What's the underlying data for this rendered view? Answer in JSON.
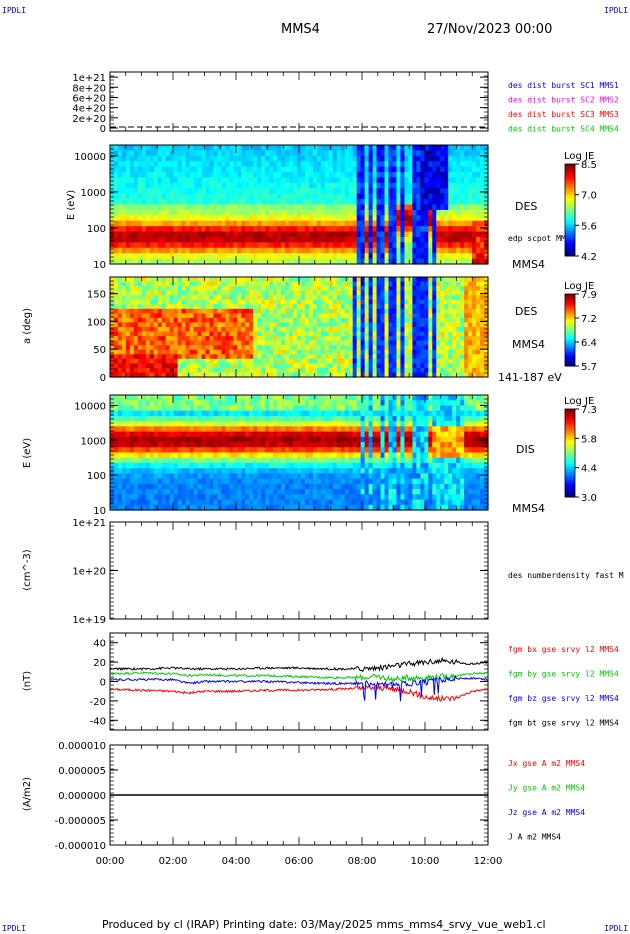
{
  "header": {
    "left_corner": "IPDLI",
    "right_corner": "IPDLI",
    "spacecraft": "MMS4",
    "date": "27/Nov/2023 00:00",
    "bottom_left_corner": "IPDLI",
    "bottom_right_corner": "IPDLI"
  },
  "footer": {
    "text": "Produced by cl (IRAP)   Printing date: 03/May/2025   mms_mms4_srvy_vue_web1.cl"
  },
  "colors": {
    "mms1": "#0000ff",
    "mms2": "#ff00ff",
    "mms3": "#ff0000",
    "mms4": "#00cc00",
    "bx": "#ff0000",
    "by": "#00cc00",
    "bz": "#0000ff",
    "bt": "#000000"
  },
  "chart_data": [
    {
      "type": "line",
      "panel": "des-dist-burst",
      "ylim": [
        0,
        1.1e+21
      ],
      "yticks": [
        "1e+21",
        "8e+20",
        "6e+20",
        "4e+20",
        "2e+20",
        "0"
      ],
      "legend": [
        "des dist burst SC1 MMS1",
        "des dist burst SC2 MMS2",
        "des dist burst SC3 MMS3",
        "des dist burst SC4 MMS4"
      ]
    },
    {
      "type": "heatmap",
      "panel": "des-energy",
      "ylabel": "E (eV)",
      "yscale": "log",
      "ylim": [
        10,
        20000
      ],
      "yticks": [
        "10000",
        "1000",
        "100",
        "10"
      ],
      "label": "DES",
      "sublabel": "edp scpot MMS4",
      "bottom_label": "MMS4",
      "colorbar": {
        "title": "Log JE",
        "ticks": [
          "8.5",
          "7.0",
          "5.6",
          "4.2"
        ],
        "range": [
          4.2,
          8.5
        ]
      }
    },
    {
      "type": "heatmap",
      "panel": "des-pitch",
      "ylabel": "a (deg)",
      "ylim": [
        0,
        180
      ],
      "yticks": [
        "150",
        "100",
        "50",
        "0"
      ],
      "label": "DES",
      "sublabel": "MMS4",
      "bottom_label": "141-187 eV",
      "colorbar": {
        "title": "Log JE",
        "ticks": [
          "7.9",
          "7.2",
          "6.4",
          "5.7"
        ],
        "range": [
          5.7,
          7.9
        ]
      }
    },
    {
      "type": "heatmap",
      "panel": "dis-energy",
      "ylabel": "E (eV)",
      "yscale": "log",
      "ylim": [
        10,
        20000
      ],
      "yticks": [
        "10000",
        "1000",
        "100",
        "10"
      ],
      "label": "DIS",
      "bottom_label": "MMS4",
      "colorbar": {
        "title": "Log JE",
        "ticks": [
          "7.3",
          "5.8",
          "4.4",
          "3.0"
        ],
        "range": [
          3.0,
          7.3
        ]
      }
    },
    {
      "type": "line",
      "panel": "density",
      "ylabel": "(cm^-3)",
      "yscale": "log",
      "ylim": [
        1e+19,
        1e+21
      ],
      "yticks": [
        "1e+21",
        "1e+20",
        "1e+19"
      ],
      "legend": [
        "des numberdensity fast M"
      ]
    },
    {
      "type": "line",
      "panel": "fgm",
      "ylabel": "(nT)",
      "ylim": [
        -50,
        50
      ],
      "yticks": [
        "40",
        "20",
        "0",
        "-20",
        "-40"
      ],
      "legend": [
        "fgm bx gse srvy l2 MMS4",
        "fgm by gse srvy l2 MMS4",
        "fgm bz gse srvy l2 MMS4",
        "fgm bt gse srvy l2 MMS4"
      ],
      "series": [
        {
          "name": "fgm bx gse srvy l2 MMS4",
          "x": [
            0,
            1,
            2,
            2.5,
            3,
            4,
            5,
            6,
            7,
            8,
            8.5,
            9,
            9.5,
            10,
            10.5,
            11,
            11.5,
            12
          ],
          "values": [
            -8,
            -9,
            -10,
            -12,
            -10,
            -10,
            -9,
            -9,
            -8,
            -7,
            -6,
            -8,
            -10,
            -16,
            -18,
            -17,
            -10,
            -8
          ]
        },
        {
          "name": "fgm by gse srvy l2 MMS4",
          "x": [
            0,
            1,
            2,
            2.5,
            3,
            4,
            5,
            6,
            7,
            8,
            8.5,
            9,
            9.5,
            10,
            10.5,
            11,
            11.5,
            12
          ],
          "values": [
            8,
            9,
            8,
            6,
            7,
            6,
            6,
            5,
            4,
            4,
            5,
            2,
            4,
            4,
            5,
            6,
            8,
            9
          ]
        },
        {
          "name": "fgm bz gse srvy l2 MMS4",
          "x": [
            0,
            1,
            2,
            2.5,
            3,
            4,
            5,
            6,
            7,
            8,
            8.5,
            9,
            9.5,
            10,
            10.5,
            11,
            11.5,
            12
          ],
          "values": [
            2,
            2,
            2,
            -2,
            0,
            0,
            0,
            -1,
            -2,
            -2,
            -3,
            -4,
            -2,
            -1,
            2,
            3,
            3,
            2
          ]
        },
        {
          "name": "fgm bt gse srvy l2 MMS4",
          "x": [
            0,
            1,
            2,
            2.5,
            3,
            4,
            5,
            6,
            7,
            8,
            8.5,
            9,
            9.5,
            10,
            10.5,
            11,
            11.5,
            12
          ],
          "values": [
            13,
            13,
            14,
            13,
            13,
            13,
            14,
            14,
            13,
            13,
            14,
            16,
            18,
            20,
            21,
            20,
            18,
            20
          ]
        }
      ]
    },
    {
      "type": "line",
      "panel": "current",
      "ylabel": "(A/m2)",
      "ylim": [
        -1e-05,
        1e-05
      ],
      "yticks": [
        "0.000010",
        "0.000005",
        "0.000000",
        "-0.000005",
        "-0.000010"
      ],
      "legend": [
        "Jx gse A m2 MMS4",
        "Jy gse A m2 MMS4",
        "Jz gse A m2 MMS4",
        "J A m2 MMS4"
      ],
      "series": [
        {
          "name": "J A m2 MMS4",
          "x": [
            0,
            12
          ],
          "values": [
            0,
            0
          ]
        }
      ]
    }
  ],
  "time_axis": {
    "range_hours": [
      0,
      12
    ],
    "ticks": [
      "00:00",
      "02:00",
      "04:00",
      "06:00",
      "08:00",
      "10:00",
      "12:00"
    ]
  }
}
